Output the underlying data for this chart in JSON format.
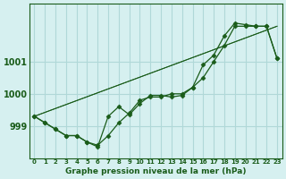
{
  "title": "Graphe pression niveau de la mer (hPa)",
  "background_color": "#d6f0f0",
  "grid_color": "#b0d8d8",
  "line_color": "#1a5c1a",
  "marker_color": "#1a5c1a",
  "x_values": [
    0,
    1,
    2,
    3,
    4,
    5,
    6,
    7,
    8,
    9,
    10,
    11,
    12,
    13,
    14,
    15,
    16,
    17,
    18,
    19,
    20,
    21,
    22,
    23
  ],
  "series1": [
    999.3,
    999.1,
    998.9,
    998.7,
    998.7,
    998.5,
    998.4,
    998.7,
    999.1,
    999.4,
    999.8,
    999.9,
    999.9,
    1000.0,
    1000.0,
    1000.2,
    1000.5,
    1001.0,
    1001.5,
    1002.1,
    1002.1,
    1002.1,
    1002.1,
    1001.1
  ],
  "series2": [
    999.3,
    999.1,
    998.9,
    998.7,
    998.7,
    998.5,
    998.35,
    999.3,
    999.6,
    999.35,
    999.7,
    999.95,
    999.95,
    999.9,
    999.95,
    1000.2,
    1000.9,
    1001.2,
    1001.8,
    1002.2,
    1002.15,
    1002.1,
    1002.1,
    1001.1
  ],
  "ylim": [
    998.0,
    1002.8
  ],
  "yticks": [
    999,
    1000,
    1001
  ],
  "xlim": [
    -0.5,
    23.5
  ]
}
